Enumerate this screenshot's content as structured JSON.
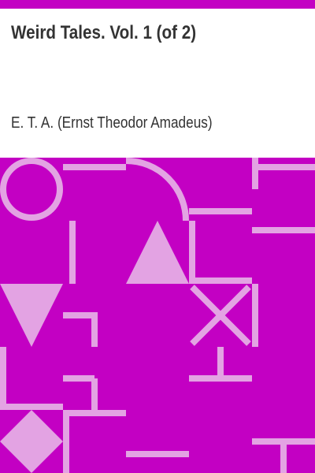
{
  "book": {
    "title": "Weird Tales. Vol. 1 (of 2)",
    "author": "E. T. A. (Ernst Theodor Amadeus)"
  },
  "colors": {
    "background": "#c300c3",
    "pattern": "#e3a3e3",
    "text": "#333333"
  }
}
